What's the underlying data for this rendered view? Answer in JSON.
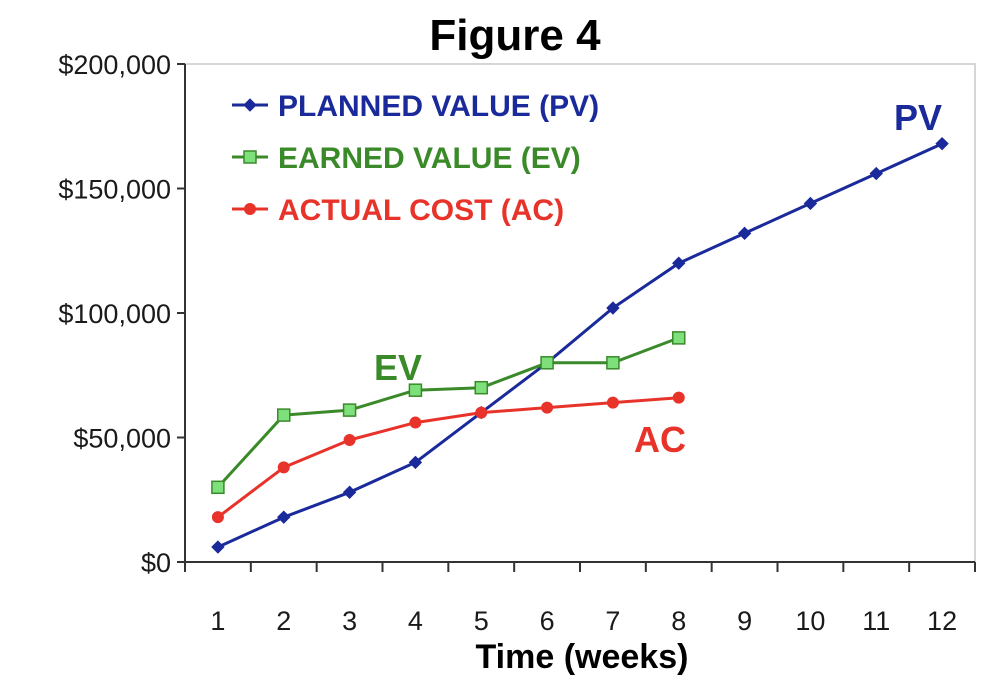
{
  "chart_data": {
    "type": "line",
    "title": "Figure 4",
    "xlabel": "Time (weeks)",
    "ylabel": "",
    "ylim": [
      0,
      200000
    ],
    "y_ticks": [
      {
        "value": 0,
        "label": "$0"
      },
      {
        "value": 50000,
        "label": "$50,000"
      },
      {
        "value": 100000,
        "label": "$100,000"
      },
      {
        "value": 150000,
        "label": "$150,000"
      },
      {
        "value": 200000,
        "label": "$200,000"
      }
    ],
    "x_ticks": [
      {
        "value": 1,
        "label": "1"
      },
      {
        "value": 2,
        "label": "2"
      },
      {
        "value": 3,
        "label": "3"
      },
      {
        "value": 4,
        "label": "4"
      },
      {
        "value": 5,
        "label": "5"
      },
      {
        "value": 6,
        "label": "6"
      },
      {
        "value": 7,
        "label": "7"
      },
      {
        "value": 8,
        "label": "8"
      },
      {
        "value": 9,
        "label": "9"
      },
      {
        "value": 10,
        "label": "10"
      },
      {
        "value": 11,
        "label": "11"
      },
      {
        "value": 12,
        "label": "12"
      }
    ],
    "xlim": [
      0.5,
      12.5
    ],
    "grid": false,
    "legend_position": "top-left",
    "series": [
      {
        "name": "PLANNED VALUE (PV)",
        "short": "pv",
        "color": "#1a2a9a",
        "marker": "diamond",
        "x": [
          1,
          2,
          3,
          4,
          5,
          6,
          7,
          8,
          9,
          10,
          11,
          12
        ],
        "values": [
          6000,
          18000,
          28000,
          40000,
          60000,
          80000,
          102000,
          120000,
          132000,
          144000,
          156000,
          168000
        ]
      },
      {
        "name": "EARNED VALUE (EV)",
        "short": "ev",
        "color": "#3a8a2a",
        "marker": "square",
        "x": [
          1,
          2,
          3,
          4,
          5,
          6,
          7,
          8
        ],
        "values": [
          30000,
          59000,
          61000,
          69000,
          70000,
          80000,
          80000,
          90000
        ]
      },
      {
        "name": "ACTUAL COST (AC)",
        "short": "ac",
        "color": "#e8332a",
        "marker": "circle",
        "x": [
          1,
          2,
          3,
          4,
          5,
          6,
          7,
          8
        ],
        "values": [
          18000,
          38000,
          49000,
          56000,
          60000,
          62000,
          64000,
          66000
        ]
      }
    ],
    "annotations": [
      {
        "text": "PV",
        "series": "pv",
        "color": "#1a2a9a"
      },
      {
        "text": "EV",
        "series": "ev",
        "color": "#3a8a2a"
      },
      {
        "text": "AC",
        "series": "ac",
        "color": "#e8332a"
      }
    ]
  }
}
